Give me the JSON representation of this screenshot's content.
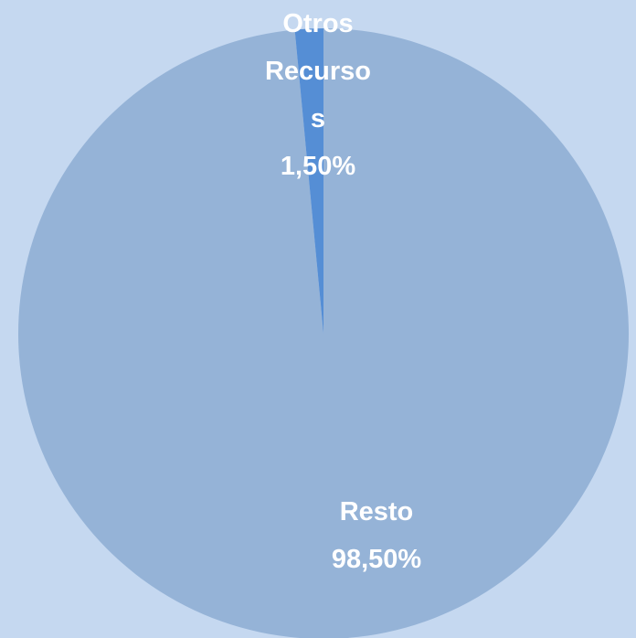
{
  "chart_data": {
    "type": "pie",
    "categories": [
      "Resto",
      "Otros Recursos"
    ],
    "values": [
      98.5,
      1.5
    ],
    "value_labels": [
      "98,50%",
      "1,50%"
    ],
    "colors": [
      "#95b3d7",
      "#558ed5"
    ]
  }
}
